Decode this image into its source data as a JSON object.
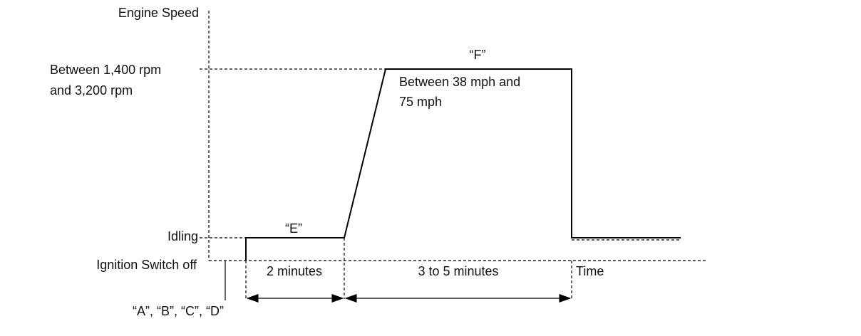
{
  "axis": {
    "y_label": "Engine Speed",
    "x_label": "Time"
  },
  "levels": {
    "high": [
      "Between 1,400 rpm",
      "and 3,200 rpm"
    ],
    "idle": "Idling",
    "off": "Ignition Switch off"
  },
  "phases": {
    "e_label": "“E”",
    "f_label": "“F”",
    "f_speed": [
      "Between 38 mph and",
      "75 mph"
    ]
  },
  "durations": {
    "first": "2 minutes",
    "second": "3 to 5 minutes"
  },
  "start_marker": "“A”, “B”, “C”, “D”"
}
